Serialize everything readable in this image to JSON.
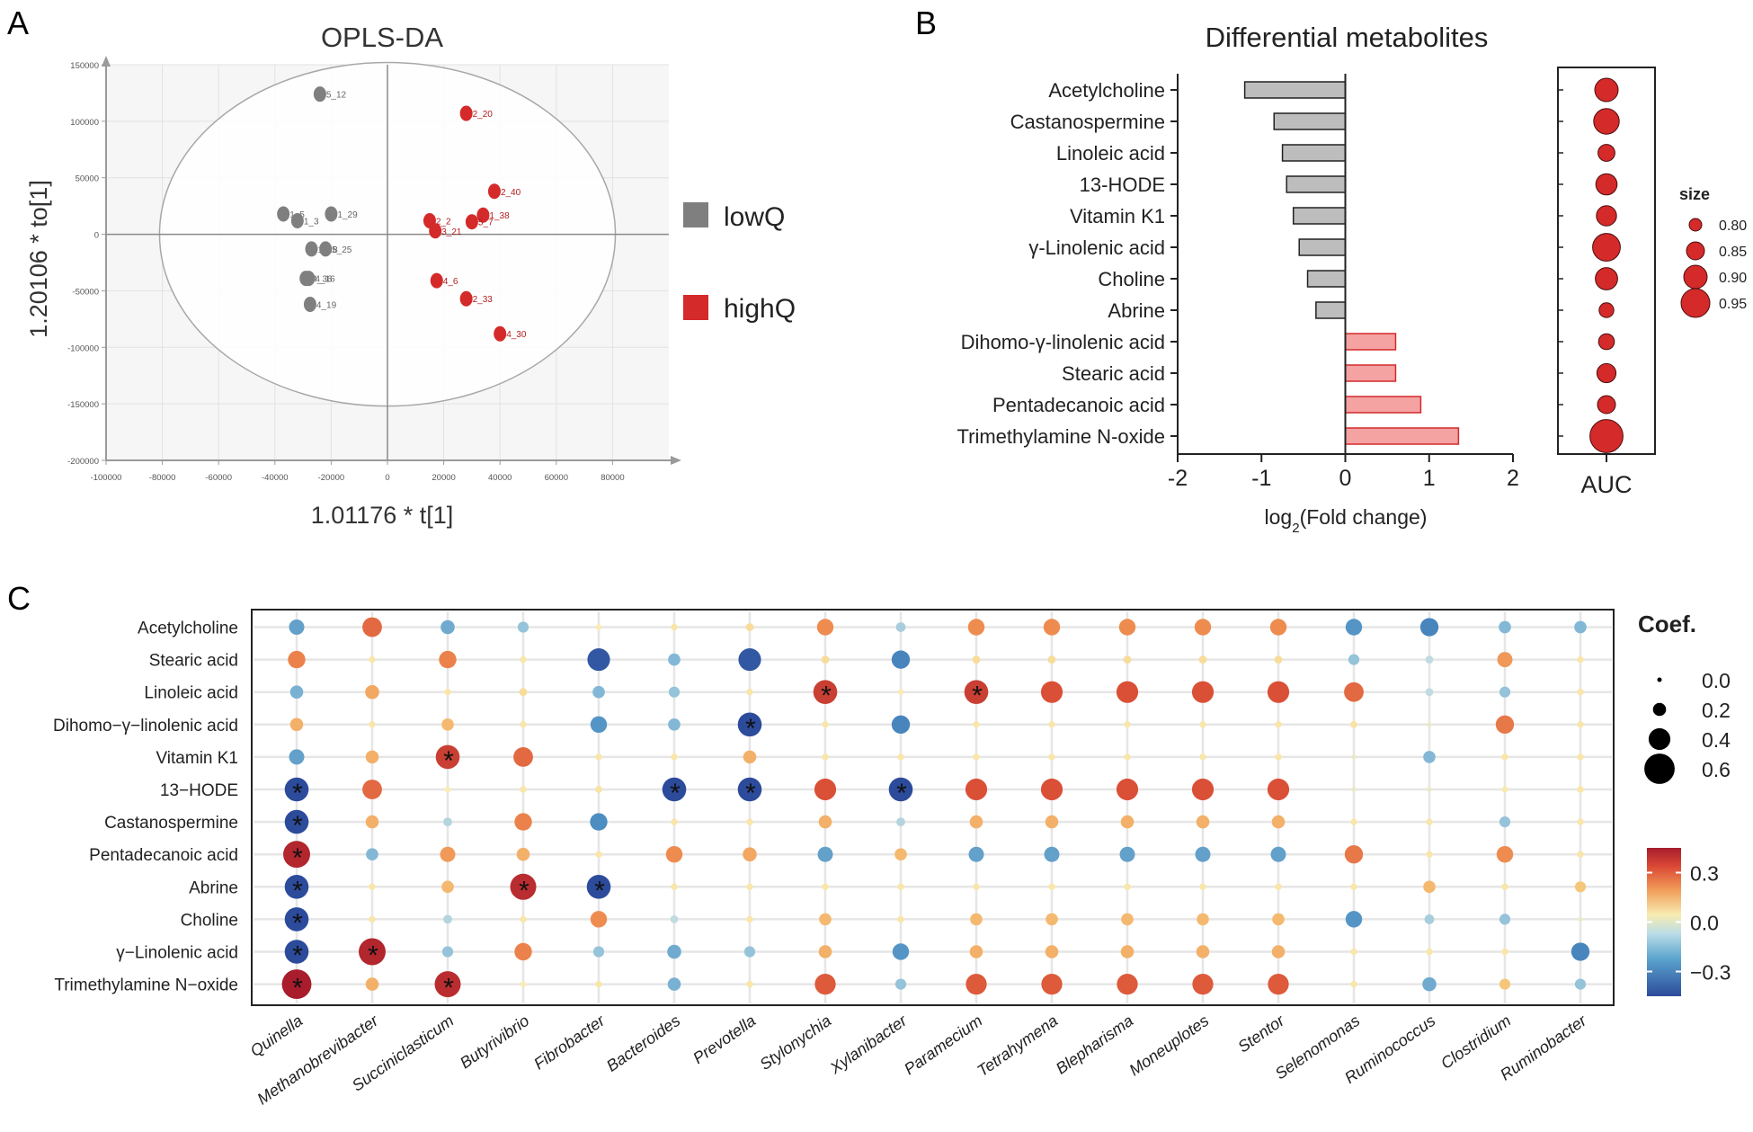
{
  "panels": {
    "a": "A",
    "b": "B",
    "c": "C"
  },
  "chart_data": [
    {
      "type": "scatter",
      "title": "OPLS-DA",
      "xlabel": "1.01176 * t[1]",
      "ylabel": "1.20106 * to[1]",
      "xlim": [
        -100000,
        100000
      ],
      "ylim": [
        -200000,
        150000
      ],
      "xticks": [
        "-100000",
        "-80000",
        "-60000",
        "-40000",
        "-20000",
        "0",
        "20000",
        "40000",
        "60000",
        "80000"
      ],
      "yticks": [
        "150000",
        "100000",
        "50000",
        "0",
        "-50000",
        "-100000",
        "-150000",
        "-200000"
      ],
      "xtick_values": [
        -100000,
        -80000,
        -60000,
        -40000,
        -20000,
        0,
        20000,
        40000,
        60000,
        80000
      ],
      "ytick_values": [
        150000,
        100000,
        50000,
        0,
        -50000,
        -100000,
        -150000,
        -200000
      ],
      "ellipse": {
        "cx": 0,
        "cy": 0,
        "rx": 81000,
        "ry": 152000
      },
      "legend": [
        {
          "name": "lowQ",
          "color": "#7f7f7f"
        },
        {
          "name": "highQ",
          "color": "#d42a2a"
        }
      ],
      "series": [
        {
          "name": "lowQ",
          "color": "#7f7f7f",
          "points": [
            {
              "label": "5_12",
              "x": -24000,
              "y": 124000
            },
            {
              "label": "1_5",
              "x": -37000,
              "y": 18000
            },
            {
              "label": "1_3",
              "x": -32000,
              "y": 12000
            },
            {
              "label": "1_29",
              "x": -20000,
              "y": 18000
            },
            {
              "label": "1_18",
              "x": -27000,
              "y": -13000
            },
            {
              "label": "5_25",
              "x": -22000,
              "y": -13000
            },
            {
              "label": "4_36",
              "x": -29000,
              "y": -39000
            },
            {
              "label": "4_16",
              "x": -28000,
              "y": -39000
            },
            {
              "label": "4_19",
              "x": -27500,
              "y": -62000
            }
          ]
        },
        {
          "name": "highQ",
          "color": "#d42a2a",
          "points": [
            {
              "label": "2_20",
              "x": 28000,
              "y": 107000
            },
            {
              "label": "2_40",
              "x": 38000,
              "y": 38000
            },
            {
              "label": "1_38",
              "x": 34000,
              "y": 17000
            },
            {
              "label": "2_2",
              "x": 15000,
              "y": 12000
            },
            {
              "label": "3_21",
              "x": 17000,
              "y": 3000
            },
            {
              "label": "5_7",
              "x": 30000,
              "y": 11000
            },
            {
              "label": "4_6",
              "x": 17500,
              "y": -41000
            },
            {
              "label": "2_33",
              "x": 28000,
              "y": -57000
            },
            {
              "label": "4_30",
              "x": 40000,
              "y": -88000
            }
          ]
        }
      ]
    },
    {
      "type": "bar",
      "title": "Differential metabolites",
      "xlabel_base": "log",
      "xlabel_sub": "2",
      "xlabel_rest": "(Fold change)",
      "xlim": [
        -2,
        2
      ],
      "xticks": [
        "-2",
        "-1",
        "0",
        "1",
        "2"
      ],
      "categories": [
        "Acetylcholine",
        "Castanospermine",
        "Linoleic acid",
        "13-HODE",
        "Vitamin K1",
        "γ-Linolenic acid",
        "Choline",
        "Abrine",
        "Dihomo-γ-linolenic acid",
        "Stearic acid",
        "Pentadecanoic acid",
        "Trimethylamine N-oxide"
      ],
      "values": [
        -1.2,
        -0.85,
        -0.75,
        -0.7,
        -0.62,
        -0.55,
        -0.45,
        -0.35,
        0.6,
        0.6,
        0.9,
        1.35
      ],
      "colors": {
        "negative": "#bdbdbd",
        "positive": "#f4a2a2"
      },
      "auc": {
        "label": "AUC",
        "values": [
          0.9,
          0.92,
          0.84,
          0.88,
          0.87,
          0.94,
          0.89,
          0.82,
          0.83,
          0.86,
          0.85,
          0.99
        ],
        "legend_title": "size",
        "legend_values": [
          "0.80",
          "0.85",
          "0.90",
          "0.95"
        ],
        "legend_numbers": [
          0.8,
          0.85,
          0.9,
          0.95
        ],
        "color": "#d42a2a"
      }
    },
    {
      "type": "heatmap",
      "title": "",
      "legend_size_title": "Coef.",
      "legend_size_labels": [
        "0.0",
        "0.2",
        "0.4",
        "0.6"
      ],
      "legend_size_values": [
        0.0,
        0.2,
        0.4,
        0.6
      ],
      "legend_color_labels": [
        "0.3",
        "0.0",
        "−0.3"
      ],
      "legend_color_values": [
        0.3,
        0.0,
        -0.3
      ],
      "color_range": [
        -0.45,
        0.45
      ],
      "rows": [
        "Acetylcholine",
        "Stearic acid",
        "Linoleic acid",
        "Dihomo−γ−linolenic acid",
        "Vitamin K1",
        "13−HODE",
        "Castanospermine",
        "Pentadecanoic acid",
        "Abrine",
        "Choline",
        "γ−Linolenic acid",
        "Trimethylamine N−oxide"
      ],
      "columns": [
        "Quinella",
        "Methanobrevibacter",
        "Succiniclasticum",
        "Butyrivibrio",
        "Fibrobacter",
        "Bacteroides",
        "Prevotella",
        "Stylonychia",
        "Xylanibacter",
        "Paramecium",
        "Tetrahymena",
        "Blepharisma",
        "Moneuplotes",
        "Stentor",
        "Selenomonas",
        "Ruminococcus",
        "Clostridium",
        "Ruminobacter"
      ],
      "values": [
        [
          -0.25,
          0.35,
          -0.22,
          -0.15,
          0.03,
          0.05,
          0.08,
          0.28,
          -0.12,
          0.28,
          0.28,
          0.28,
          0.28,
          0.28,
          -0.28,
          -0.32,
          -0.18,
          -0.18
        ],
        [
          0.3,
          0.05,
          0.3,
          0.05,
          -0.42,
          -0.18,
          -0.42,
          0.08,
          -0.32,
          0.08,
          0.08,
          0.08,
          0.08,
          0.08,
          -0.15,
          -0.08,
          0.25,
          0.05
        ],
        [
          -0.2,
          0.22,
          0.05,
          0.08,
          -0.18,
          -0.15,
          0.05,
          0.45,
          0.03,
          0.45,
          0.4,
          0.4,
          0.4,
          0.4,
          0.35,
          -0.08,
          -0.15,
          0.05
        ],
        [
          0.2,
          0.05,
          0.18,
          0.05,
          -0.28,
          -0.18,
          -0.45,
          0.05,
          -0.32,
          0.05,
          0.05,
          0.05,
          0.05,
          0.05,
          0.06,
          0.0,
          0.32,
          0.05
        ],
        [
          -0.25,
          0.2,
          0.45,
          0.35,
          0.05,
          0.05,
          0.2,
          0.05,
          0.05,
          0.05,
          0.05,
          0.05,
          0.05,
          0.05,
          0.0,
          -0.18,
          0.05,
          0.05
        ],
        [
          -0.45,
          0.35,
          0.03,
          0.05,
          0.06,
          -0.45,
          -0.45,
          0.4,
          -0.45,
          0.4,
          0.4,
          0.4,
          0.4,
          0.4,
          0.0,
          0.0,
          0.04,
          0.05
        ],
        [
          -0.45,
          0.2,
          -0.1,
          0.3,
          -0.3,
          0.05,
          0.05,
          0.2,
          -0.1,
          0.2,
          0.2,
          0.2,
          0.2,
          0.2,
          0.05,
          0.05,
          -0.15,
          0.05
        ],
        [
          0.52,
          -0.18,
          0.25,
          0.2,
          0.05,
          0.28,
          0.22,
          -0.25,
          0.18,
          -0.25,
          -0.25,
          -0.25,
          -0.25,
          -0.25,
          0.32,
          0.05,
          0.28,
          0.05
        ],
        [
          -0.45,
          0.05,
          0.18,
          0.5,
          -0.45,
          0.05,
          0.05,
          0.05,
          0.05,
          0.05,
          0.05,
          0.05,
          0.05,
          0.05,
          0.05,
          0.18,
          0.05,
          0.15
        ],
        [
          -0.45,
          0.05,
          -0.1,
          0.05,
          0.28,
          -0.08,
          0.05,
          0.18,
          0.05,
          0.18,
          0.18,
          0.18,
          0.18,
          0.18,
          -0.28,
          -0.12,
          -0.15,
          0.0
        ],
        [
          -0.45,
          0.52,
          -0.15,
          0.3,
          -0.15,
          -0.22,
          -0.15,
          0.2,
          -0.28,
          0.2,
          0.2,
          0.2,
          0.2,
          0.2,
          0.05,
          0.05,
          0.05,
          -0.32
        ],
        [
          0.58,
          0.2,
          0.5,
          0.03,
          0.05,
          -0.2,
          0.05,
          0.38,
          -0.15,
          0.38,
          0.38,
          0.38,
          0.38,
          0.38,
          0.05,
          -0.22,
          0.15,
          -0.15
        ]
      ],
      "significant": [
        [
          5,
          0
        ],
        [
          6,
          0
        ],
        [
          7,
          0
        ],
        [
          8,
          0
        ],
        [
          9,
          0
        ],
        [
          10,
          0
        ],
        [
          11,
          0
        ],
        [
          10,
          1
        ],
        [
          4,
          2
        ],
        [
          11,
          2
        ],
        [
          8,
          3
        ],
        [
          8,
          4
        ],
        [
          5,
          5
        ],
        [
          3,
          6
        ],
        [
          5,
          6
        ],
        [
          2,
          7
        ],
        [
          5,
          8
        ],
        [
          2,
          9
        ]
      ]
    }
  ]
}
